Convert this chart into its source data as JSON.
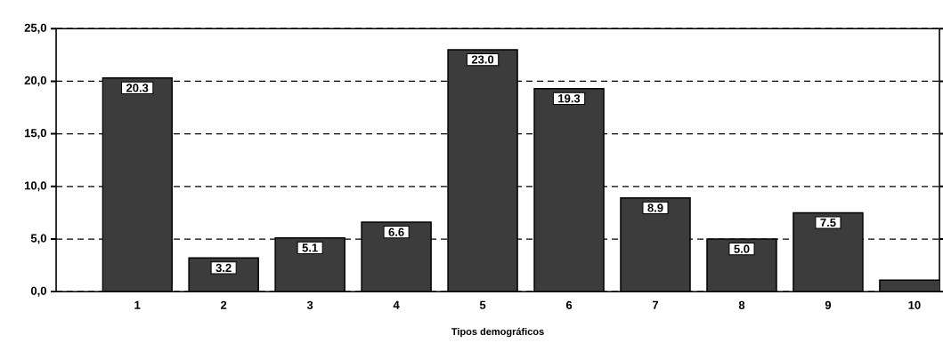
{
  "chart_data": {
    "type": "bar",
    "xlabel": "Tipos demográficos",
    "categories": [
      "1",
      "2",
      "3",
      "4",
      "5",
      "6",
      "7",
      "8",
      "9",
      "10"
    ],
    "values": [
      20.3,
      3.2,
      5.1,
      6.6,
      23.0,
      19.3,
      8.9,
      5.0,
      7.5,
      1.1
    ],
    "value_labels": [
      "20.3",
      "3.2",
      "5.1",
      "6.6",
      "23.0",
      "19.3",
      "8.9",
      "5.0",
      "7.5",
      null
    ],
    "color": "#3c3c3c",
    "ylim": [
      0,
      25
    ],
    "yticks": [
      {
        "value": 0,
        "label": "0,0"
      },
      {
        "value": 5,
        "label": "5,0"
      },
      {
        "value": 10,
        "label": "10,0"
      },
      {
        "value": 15,
        "label": "15,0"
      },
      {
        "value": 20,
        "label": "20,0"
      },
      {
        "value": 25,
        "label": "25,0"
      }
    ],
    "grid": "y"
  }
}
